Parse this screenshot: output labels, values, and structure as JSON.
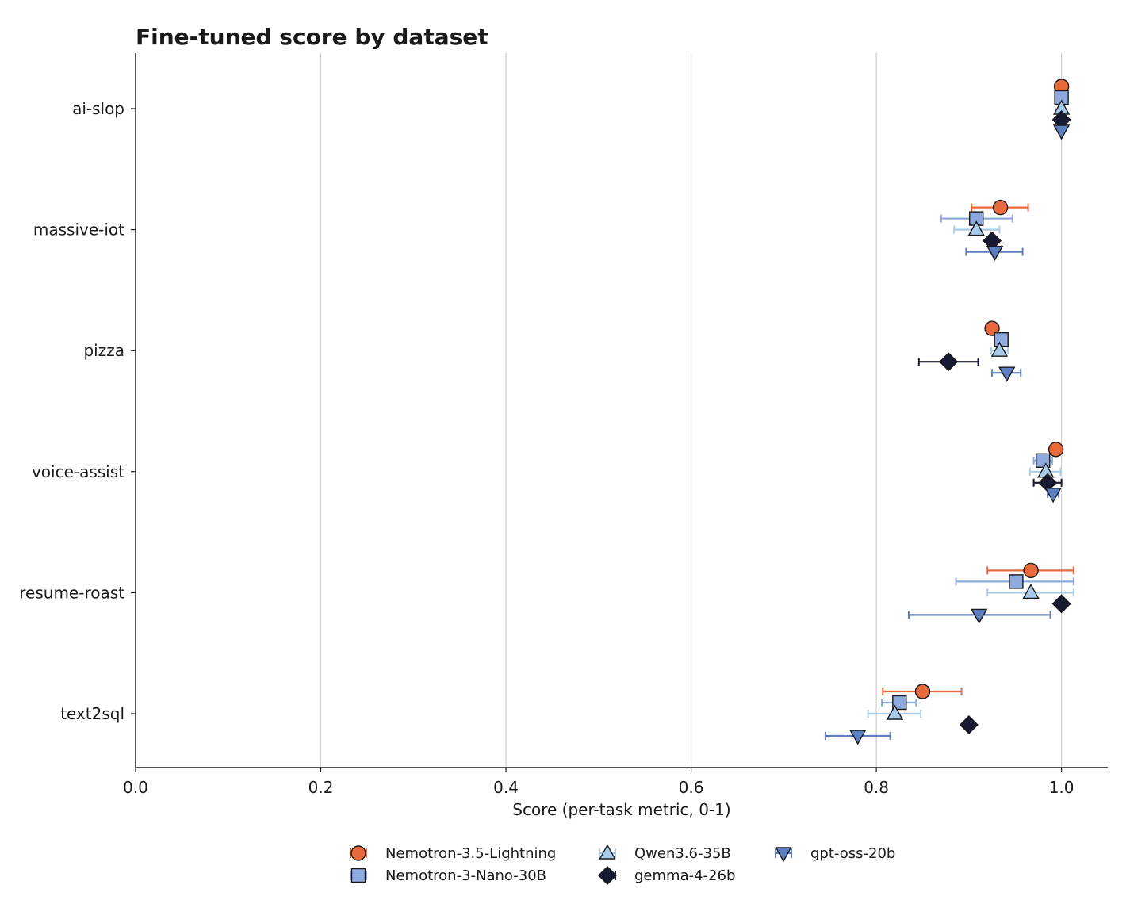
{
  "chart_data": {
    "type": "scatter",
    "title": "Fine-tuned score by dataset",
    "xlabel": "Score (per-task metric, 0-1)",
    "ylabel": "",
    "xlim": [
      0,
      1.05
    ],
    "xticks": [
      "0.0",
      "0.2",
      "0.4",
      "0.6",
      "0.8",
      "1.0"
    ],
    "xtick_values": [
      0,
      0.2,
      0.4,
      0.6,
      0.8,
      1.0
    ],
    "grid": "vertical",
    "legend_position": "bottom-center",
    "categories": [
      "ai-slop",
      "massive-iot",
      "pizza",
      "voice-assist",
      "resume-roast",
      "text2sql"
    ],
    "series": [
      {
        "name": "Nemotron-3.5-Lightning",
        "marker": "circle",
        "color": "#e8693c",
        "errcolor": "#e8693c",
        "values": [
          1.0,
          0.934,
          0.925,
          0.994,
          0.967,
          0.85
        ],
        "err_low": [
          null,
          0.903,
          null,
          null,
          0.92,
          0.807
        ],
        "err_high": [
          null,
          0.964,
          null,
          null,
          1.013,
          0.892
        ]
      },
      {
        "name": "Nemotron-3-Nano-30B",
        "marker": "square",
        "color": "#8da9dd",
        "errcolor": "#8da9dd",
        "values": [
          1.0,
          0.908,
          0.935,
          0.98,
          0.951,
          0.825
        ],
        "err_low": [
          null,
          0.87,
          null,
          0.97,
          0.886,
          0.806
        ],
        "err_high": [
          null,
          0.947,
          null,
          0.99,
          1.013,
          0.843
        ]
      },
      {
        "name": "Qwen3.6-35B",
        "marker": "triangle-up",
        "color": "#a9cbeb",
        "errcolor": "#a9cbeb",
        "values": [
          1.0,
          0.908,
          0.933,
          0.983,
          0.967,
          0.82
        ],
        "err_low": [
          null,
          0.884,
          0.924,
          0.966,
          0.92,
          0.791
        ],
        "err_high": [
          null,
          0.933,
          0.942,
          0.999,
          1.013,
          0.848
        ]
      },
      {
        "name": "gemma-4-26b",
        "marker": "diamond",
        "color": "#181933",
        "errcolor": "#181933",
        "values": [
          1.0,
          0.925,
          0.878,
          0.985,
          1.0,
          0.9
        ],
        "err_low": [
          null,
          null,
          0.846,
          0.97,
          null,
          null
        ],
        "err_high": [
          null,
          null,
          0.91,
          1.0,
          null,
          null
        ]
      },
      {
        "name": "gpt-oss-20b",
        "marker": "triangle-down",
        "color": "#5b80c2",
        "errcolor": "#5b80c2",
        "values": [
          1.0,
          0.928,
          0.941,
          0.991,
          0.911,
          0.78
        ],
        "err_low": [
          null,
          0.897,
          0.925,
          0.985,
          0.835,
          0.745
        ],
        "err_high": [
          null,
          0.958,
          0.956,
          0.997,
          0.988,
          0.815
        ]
      }
    ]
  }
}
